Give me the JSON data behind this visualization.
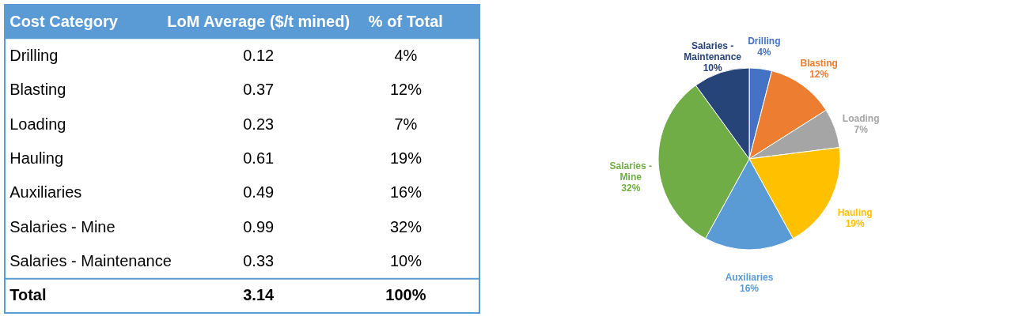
{
  "chart_data": [
    {
      "type": "other",
      "xlabel": "Cost Category",
      "categories": [
        "Drilling",
        "Blasting",
        "Loading",
        "Hauling",
        "Auxiliaries",
        "Salaries - Mine",
        "Salaries - Maintenance"
      ],
      "series": [
        {
          "name": "LoM Average ($/t mined)",
          "values": [
            0.12,
            0.37,
            0.23,
            0.61,
            0.49,
            0.99,
            0.33
          ]
        },
        {
          "name": "% of Total",
          "values": [
            4,
            12,
            7,
            19,
            16,
            32,
            10
          ],
          "value_labels": [
            "4%",
            "12%",
            "7%",
            "19%",
            "16%",
            "32%",
            "10%"
          ]
        }
      ],
      "data_labels": true,
      "annotations": [
        "Total"
      ],
      "totals": [
        "3.14",
        "100%"
      ]
    },
    {
      "type": "pie",
      "categories": [
        "Drilling",
        "Blasting",
        "Loading",
        "Hauling",
        "Auxiliaries",
        "Salaries - Mine",
        "Salaries - Maintenance"
      ],
      "values": [
        4,
        12,
        7,
        19,
        16,
        32,
        10
      ],
      "value_labels": [
        "4%",
        "12%",
        "7%",
        "19%",
        "16%",
        "32%",
        "10%"
      ],
      "colors": [
        "#4472c4",
        "#ed7d31",
        "#a5a5a5",
        "#ffc000",
        "#5b9bd5",
        "#70ad47",
        "#264478"
      ]
    }
  ]
}
